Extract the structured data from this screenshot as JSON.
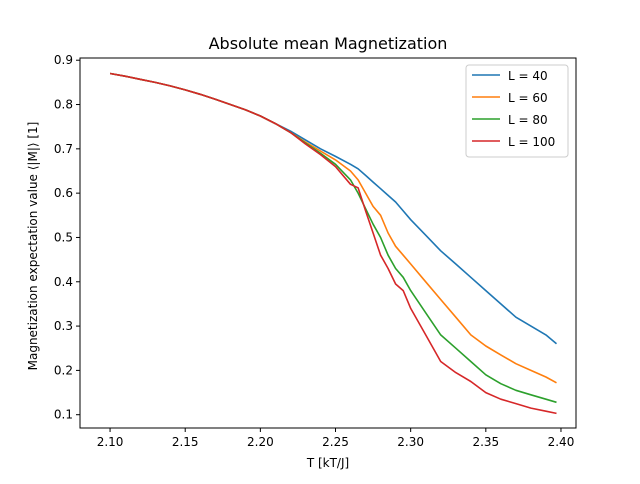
{
  "chart_data": {
    "type": "line",
    "title": "Absolute mean Magnetization",
    "xlabel": "T [kT/J]",
    "ylabel": "Magnetization expectation value ⟨|M|⟩ [1]",
    "xlim": [
      2.08,
      2.41
    ],
    "ylim": [
      0.07,
      0.905
    ],
    "xticks": [
      "2.10",
      "2.15",
      "2.20",
      "2.25",
      "2.30",
      "2.35",
      "2.40"
    ],
    "yticks": [
      "0.1",
      "0.2",
      "0.3",
      "0.4",
      "0.5",
      "0.6",
      "0.7",
      "0.8",
      "0.9"
    ],
    "grid": false,
    "legend_position": "top-right",
    "x": [
      2.1,
      2.11,
      2.12,
      2.13,
      2.14,
      2.15,
      2.16,
      2.17,
      2.18,
      2.19,
      2.2,
      2.21,
      2.22,
      2.23,
      2.24,
      2.25,
      2.26,
      2.265,
      2.27,
      2.275,
      2.28,
      2.285,
      2.29,
      2.295,
      2.3,
      2.31,
      2.32,
      2.33,
      2.34,
      2.35,
      2.36,
      2.37,
      2.38,
      2.39,
      2.397
    ],
    "series": [
      {
        "name": "L = 40",
        "color": "#1f77b4",
        "values": [
          0.87,
          0.864,
          0.857,
          0.85,
          0.842,
          0.833,
          0.823,
          0.812,
          0.8,
          0.788,
          0.774,
          0.757,
          0.74,
          0.72,
          0.7,
          0.683,
          0.665,
          0.655,
          0.64,
          0.625,
          0.61,
          0.595,
          0.58,
          0.56,
          0.54,
          0.505,
          0.47,
          0.44,
          0.41,
          0.38,
          0.35,
          0.32,
          0.3,
          0.28,
          0.26
        ]
      },
      {
        "name": "L = 60",
        "color": "#ff7f0e",
        "values": [
          0.87,
          0.864,
          0.857,
          0.85,
          0.842,
          0.833,
          0.823,
          0.812,
          0.8,
          0.788,
          0.774,
          0.757,
          0.737,
          0.715,
          0.695,
          0.675,
          0.65,
          0.63,
          0.6,
          0.57,
          0.55,
          0.51,
          0.48,
          0.46,
          0.44,
          0.4,
          0.36,
          0.32,
          0.28,
          0.255,
          0.235,
          0.215,
          0.2,
          0.185,
          0.172
        ]
      },
      {
        "name": "L = 80",
        "color": "#2ca02c",
        "values": [
          0.87,
          0.864,
          0.857,
          0.85,
          0.842,
          0.833,
          0.823,
          0.812,
          0.8,
          0.788,
          0.774,
          0.757,
          0.737,
          0.713,
          0.69,
          0.665,
          0.63,
          0.6,
          0.565,
          0.53,
          0.5,
          0.46,
          0.43,
          0.41,
          0.38,
          0.33,
          0.28,
          0.25,
          0.22,
          0.19,
          0.17,
          0.155,
          0.145,
          0.135,
          0.128
        ]
      },
      {
        "name": "L = 100",
        "color": "#d62728",
        "values": [
          0.87,
          0.864,
          0.857,
          0.85,
          0.842,
          0.833,
          0.823,
          0.812,
          0.8,
          0.788,
          0.774,
          0.757,
          0.737,
          0.711,
          0.687,
          0.66,
          0.62,
          0.612,
          0.56,
          0.51,
          0.46,
          0.43,
          0.395,
          0.38,
          0.34,
          0.28,
          0.22,
          0.195,
          0.175,
          0.15,
          0.135,
          0.125,
          0.115,
          0.108,
          0.103
        ]
      }
    ]
  }
}
